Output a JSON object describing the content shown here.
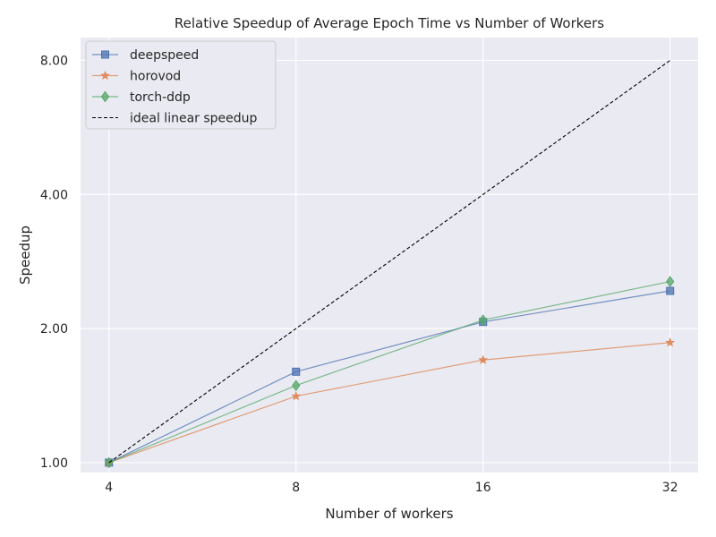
{
  "chart_data": {
    "type": "line",
    "title": "Relative Speedup of Average Epoch Time vs Number of Workers",
    "xlabel": "Number of workers",
    "ylabel": "Speedup",
    "x_scale": "log2",
    "y_scale": "log2",
    "x": [
      4,
      8,
      16,
      32
    ],
    "x_tick_labels": [
      "4",
      "8",
      "16",
      "32"
    ],
    "y_ticks": [
      1,
      2,
      4,
      8
    ],
    "y_tick_labels": [
      "1.00",
      "2.00",
      "4.00",
      "8.00"
    ],
    "xlim": [
      3.6,
      35.5
    ],
    "ylim": [
      0.95,
      9.0
    ],
    "grid": true,
    "legend_position": "top-left",
    "series": [
      {
        "name": "deepspeed",
        "values": [
          1.0,
          1.6,
          2.07,
          2.43
        ],
        "color": "#4c72b0",
        "marker": "square"
      },
      {
        "name": "horovod",
        "values": [
          1.0,
          1.41,
          1.7,
          1.86
        ],
        "color": "#dd8452",
        "marker": "star"
      },
      {
        "name": "torch-ddp",
        "values": [
          1.0,
          1.49,
          2.09,
          2.55
        ],
        "color": "#55a868",
        "marker": "diamond"
      },
      {
        "name": "ideal linear speedup",
        "values": [
          1,
          2,
          4,
          8
        ],
        "color": "#000000",
        "marker": "none",
        "dashed": true
      }
    ]
  }
}
